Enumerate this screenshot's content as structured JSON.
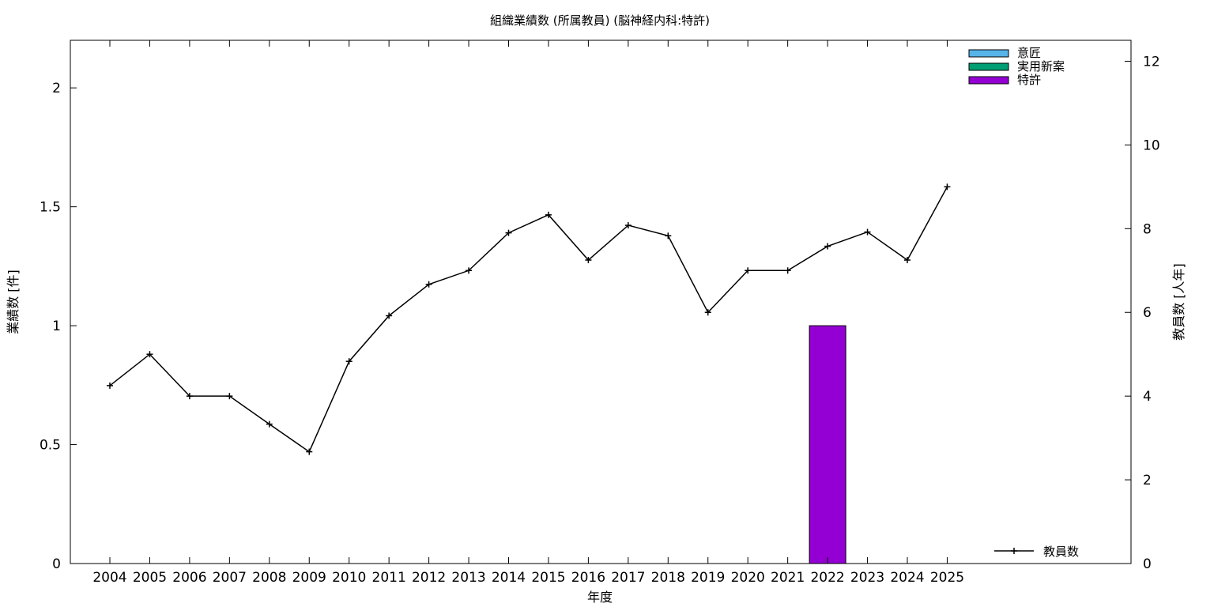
{
  "chart_data": {
    "type": "bar+line",
    "title": "組織業績数 (所属教員) (脳神経内科:特許)",
    "xlabel": "年度",
    "ylabel_left": "業績数 [件]",
    "ylabel_right": "教員数 [人年]",
    "categories": [
      "2004",
      "2005",
      "2006",
      "2007",
      "2008",
      "2009",
      "2010",
      "2011",
      "2012",
      "2013",
      "2014",
      "2015",
      "2016",
      "2017",
      "2018",
      "2019",
      "2020",
      "2021",
      "2022",
      "2023",
      "2024",
      "2025"
    ],
    "ylim_left": [
      0,
      2.2
    ],
    "yticks_left": [
      0,
      0.5,
      1,
      1.5,
      2
    ],
    "ytick_labels_left": [
      "0",
      "0.5",
      "1",
      "1.5",
      "2"
    ],
    "ylim_right": [
      0,
      12.5
    ],
    "yticks_right": [
      0,
      2,
      4,
      6,
      8,
      10,
      12
    ],
    "ytick_labels_right": [
      "0",
      "2",
      "4",
      "6",
      "8",
      "10",
      "12"
    ],
    "bar_series": [
      {
        "name": "意匠",
        "color": "#56b4e9",
        "values": [
          0,
          0,
          0,
          0,
          0,
          0,
          0,
          0,
          0,
          0,
          0,
          0,
          0,
          0,
          0,
          0,
          0,
          0,
          0,
          0,
          0,
          0
        ]
      },
      {
        "name": "実用新案",
        "color": "#009e73",
        "values": [
          0,
          0,
          0,
          0,
          0,
          0,
          0,
          0,
          0,
          0,
          0,
          0,
          0,
          0,
          0,
          0,
          0,
          0,
          0,
          0,
          0,
          0
        ]
      },
      {
        "name": "特許",
        "color": "#9400d3",
        "values": [
          0,
          0,
          0,
          0,
          0,
          0,
          0,
          0,
          0,
          0,
          0,
          0,
          0,
          0,
          0,
          0,
          0,
          0,
          1,
          0,
          0,
          0
        ]
      }
    ],
    "line_series": {
      "name": "教員数",
      "color": "#000000",
      "axis": "right",
      "values": [
        4.25,
        5.0,
        4.0,
        4.0,
        3.33,
        2.67,
        4.83,
        5.92,
        6.67,
        7.0,
        7.9,
        8.33,
        7.25,
        8.08,
        7.83,
        6.0,
        7.0,
        7.0,
        7.58,
        7.92,
        7.25,
        9.0
      ]
    },
    "legend_bars_position": "top-right",
    "legend_line_position": "bottom-right",
    "grid": false
  }
}
